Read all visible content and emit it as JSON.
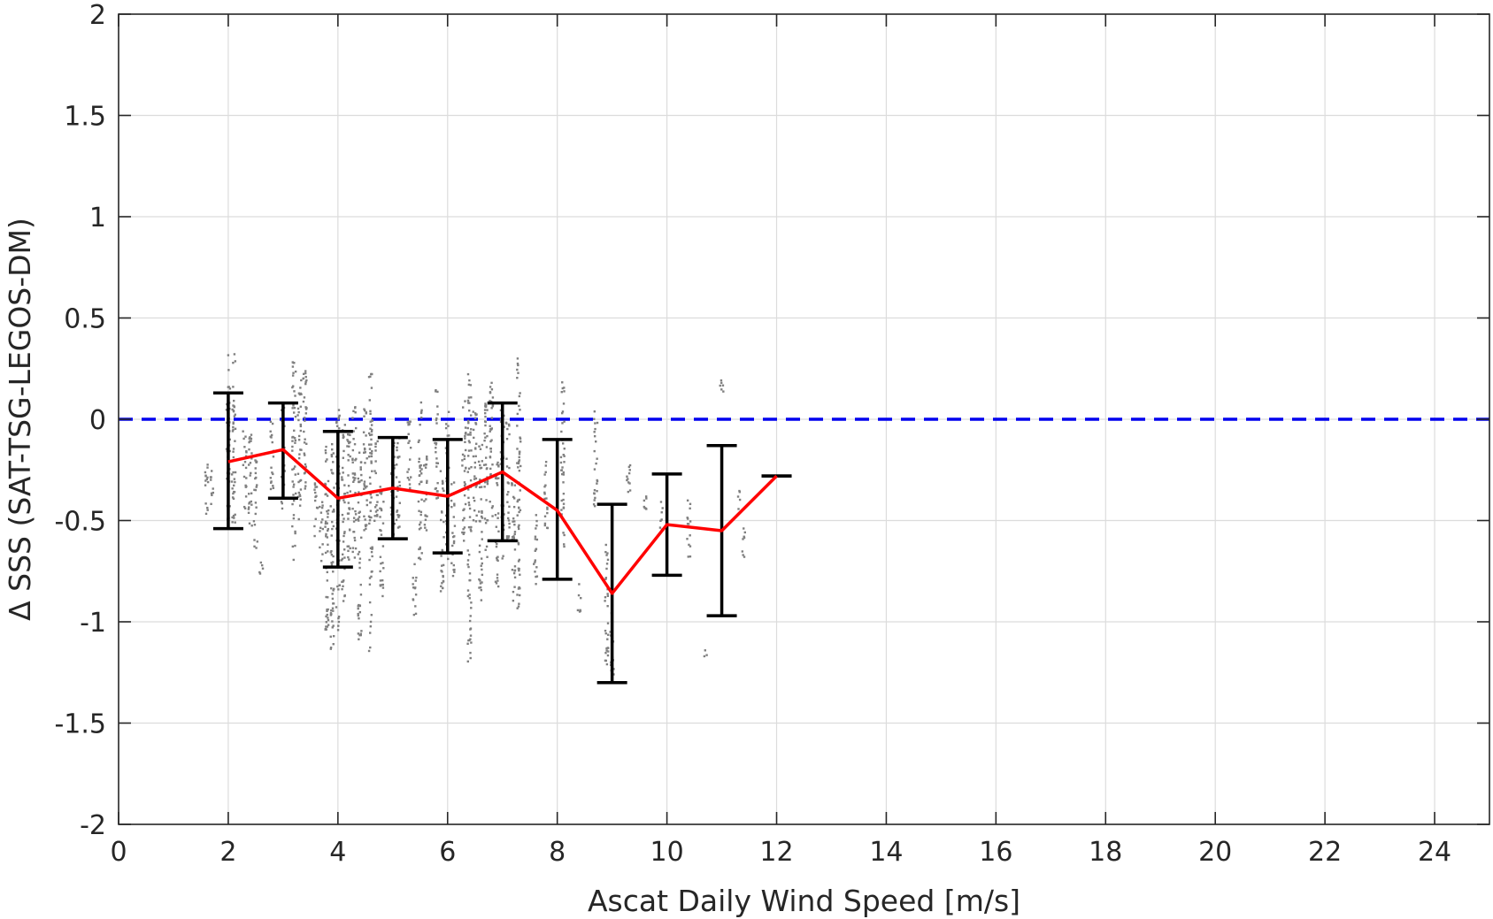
{
  "chart_data": {
    "type": "scatter",
    "title": "",
    "xlabel": "Ascat Daily Wind Speed [m/s]",
    "ylabel": "Δ SSS (SAT-TSG-LEGOS-DM)",
    "xlim": [
      0,
      25
    ],
    "ylim": [
      -2,
      2
    ],
    "xticks": [
      0,
      2,
      4,
      6,
      8,
      10,
      12,
      14,
      16,
      18,
      20,
      22,
      24
    ],
    "yticks": [
      -2,
      -1.5,
      -1,
      -0.5,
      0,
      0.5,
      1,
      1.5,
      2
    ],
    "xtick_labels": [
      "0",
      "2",
      "4",
      "6",
      "8",
      "10",
      "12",
      "14",
      "16",
      "18",
      "20",
      "22",
      "24"
    ],
    "ytick_labels": [
      "-2",
      "-1.5",
      "-1",
      "-0.5",
      "0",
      "0.5",
      "1",
      "1.5",
      "2"
    ],
    "grid": true,
    "reference_line": {
      "y": 0,
      "style": "dashed",
      "color": "#0000ee"
    },
    "binned_mean": {
      "color": "#ff0000",
      "x": [
        2,
        3,
        4,
        5,
        6,
        7,
        8,
        9,
        10,
        11,
        12
      ],
      "y": [
        -0.21,
        -0.15,
        -0.39,
        -0.34,
        -0.38,
        -0.26,
        -0.45,
        -0.86,
        -0.52,
        -0.55,
        -0.28
      ],
      "lower": [
        -0.54,
        -0.39,
        -0.73,
        -0.59,
        -0.66,
        -0.6,
        -0.79,
        -1.3,
        -0.77,
        -0.97,
        -0.28
      ],
      "upper": [
        0.13,
        0.08,
        -0.06,
        -0.09,
        -0.1,
        0.08,
        -0.1,
        -0.42,
        -0.27,
        -0.13,
        -0.28
      ]
    },
    "scatter_color": "#808080",
    "scatter_clusters": [
      {
        "x": 1.6,
        "ymin": -0.5,
        "ymax": -0.2
      },
      {
        "x": 1.7,
        "ymin": -0.45,
        "ymax": -0.25
      },
      {
        "x": 2.0,
        "ymin": -0.5,
        "ymax": 0.32
      },
      {
        "x": 2.1,
        "ymin": -0.6,
        "ymax": 0.35
      },
      {
        "x": 2.3,
        "ymin": -0.45,
        "ymax": -0.05
      },
      {
        "x": 2.4,
        "ymin": -0.55,
        "ymax": 0.02
      },
      {
        "x": 2.5,
        "ymin": -0.65,
        "ymax": -0.2
      },
      {
        "x": 2.6,
        "ymin": -0.8,
        "ymax": -0.7
      },
      {
        "x": 2.8,
        "ymin": -0.35,
        "ymax": 0.05
      },
      {
        "x": 3.0,
        "ymin": -0.45,
        "ymax": 0.1
      },
      {
        "x": 3.2,
        "ymin": -0.7,
        "ymax": 0.32
      },
      {
        "x": 3.3,
        "ymin": -0.5,
        "ymax": 0.2
      },
      {
        "x": 3.4,
        "ymin": -0.4,
        "ymax": 0.25
      },
      {
        "x": 3.6,
        "ymin": -0.6,
        "ymax": -0.3
      },
      {
        "x": 3.7,
        "ymin": -0.7,
        "ymax": -0.4
      },
      {
        "x": 3.8,
        "ymin": -1.05,
        "ymax": -0.05
      },
      {
        "x": 3.9,
        "ymin": -1.15,
        "ymax": -0.1
      },
      {
        "x": 4.0,
        "ymin": -1.05,
        "ymax": 0.05
      },
      {
        "x": 4.1,
        "ymin": -0.9,
        "ymax": 0.0
      },
      {
        "x": 4.2,
        "ymin": -0.75,
        "ymax": -0.05
      },
      {
        "x": 4.3,
        "ymin": -0.7,
        "ymax": 0.1
      },
      {
        "x": 4.4,
        "ymin": -1.1,
        "ymax": -0.15
      },
      {
        "x": 4.5,
        "ymin": -0.6,
        "ymax": 0.05
      },
      {
        "x": 4.6,
        "ymin": -1.15,
        "ymax": 0.23
      },
      {
        "x": 4.7,
        "ymin": -0.55,
        "ymax": -0.1
      },
      {
        "x": 4.8,
        "ymin": -0.9,
        "ymax": -0.3
      },
      {
        "x": 5.0,
        "ymin": -0.6,
        "ymax": -0.1
      },
      {
        "x": 5.1,
        "ymin": -0.55,
        "ymax": -0.05
      },
      {
        "x": 5.3,
        "ymin": -0.4,
        "ymax": 0.0
      },
      {
        "x": 5.4,
        "ymin": -1.0,
        "ymax": -0.7
      },
      {
        "x": 5.5,
        "ymin": -0.7,
        "ymax": 0.1
      },
      {
        "x": 5.6,
        "ymin": -0.6,
        "ymax": -0.15
      },
      {
        "x": 5.8,
        "ymin": -0.4,
        "ymax": 0.15
      },
      {
        "x": 5.9,
        "ymin": -0.85,
        "ymax": -0.25
      },
      {
        "x": 6.0,
        "ymin": -0.7,
        "ymax": 0.05
      },
      {
        "x": 6.1,
        "ymin": -0.8,
        "ymax": -0.3
      },
      {
        "x": 6.3,
        "ymin": -0.6,
        "ymax": 0.1
      },
      {
        "x": 6.4,
        "ymin": -1.2,
        "ymax": 0.24
      },
      {
        "x": 6.5,
        "ymin": -0.55,
        "ymax": 0.05
      },
      {
        "x": 6.6,
        "ymin": -0.9,
        "ymax": -0.1
      },
      {
        "x": 6.7,
        "ymin": -0.7,
        "ymax": 0.08
      },
      {
        "x": 6.8,
        "ymin": -0.5,
        "ymax": 0.2
      },
      {
        "x": 6.9,
        "ymin": -0.85,
        "ymax": -0.2
      },
      {
        "x": 7.0,
        "ymin": -0.7,
        "ymax": 0.05
      },
      {
        "x": 7.1,
        "ymin": -0.6,
        "ymax": 0.0
      },
      {
        "x": 7.2,
        "ymin": -0.9,
        "ymax": -0.3
      },
      {
        "x": 7.3,
        "ymin": -0.95,
        "ymax": 0.3
      },
      {
        "x": 7.6,
        "ymin": -0.85,
        "ymax": -0.45
      },
      {
        "x": 7.8,
        "ymin": -0.6,
        "ymax": -0.2
      },
      {
        "x": 8.1,
        "ymin": -0.65,
        "ymax": 0.2
      },
      {
        "x": 8.4,
        "ymin": -0.95,
        "ymax": -0.8
      },
      {
        "x": 8.7,
        "ymin": -0.45,
        "ymax": 0.05
      },
      {
        "x": 8.9,
        "ymin": -1.25,
        "ymax": -0.6
      },
      {
        "x": 9.0,
        "ymin": -1.28,
        "ymax": -0.9
      },
      {
        "x": 9.3,
        "ymin": -0.4,
        "ymax": -0.15
      },
      {
        "x": 9.6,
        "ymin": -0.5,
        "ymax": -0.35
      },
      {
        "x": 9.9,
        "ymin": -0.55,
        "ymax": -0.4
      },
      {
        "x": 10.4,
        "ymin": -0.7,
        "ymax": -0.4
      },
      {
        "x": 10.7,
        "ymin": -1.18,
        "ymax": -1.13
      },
      {
        "x": 11.0,
        "ymin": 0.12,
        "ymax": 0.26
      },
      {
        "x": 11.3,
        "ymin": -0.45,
        "ymax": -0.35
      },
      {
        "x": 11.4,
        "ymin": -0.68,
        "ymax": -0.5
      }
    ]
  }
}
